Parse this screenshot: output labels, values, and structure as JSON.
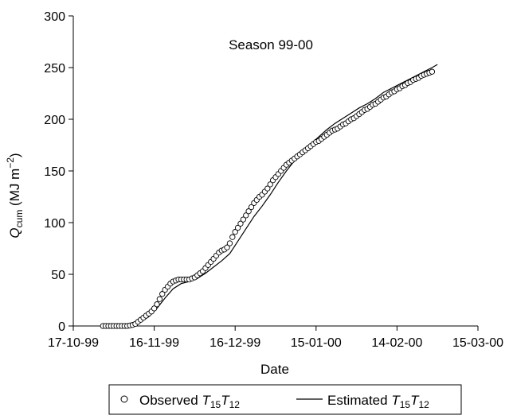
{
  "chart_data": {
    "type": "scatter",
    "title": "",
    "annotation": "Season 99-00",
    "xlabel": "Date",
    "ylabel": {
      "main": "Q",
      "sub": "cum",
      "unit_open": " (MJ m",
      "unit_sup": "−2",
      "unit_close": ")"
    },
    "x_ticks": [
      "17-10-99",
      "16-11-99",
      "16-12-99",
      "15-01-00",
      "14-02-00",
      "15-03-00"
    ],
    "xlim": [
      "1999-10-17",
      "2000-03-15"
    ],
    "y_ticks": [
      "0",
      "50",
      "100",
      "150",
      "200",
      "250",
      "300"
    ],
    "ylim": [
      0,
      300
    ],
    "grid": false,
    "legend_position": "bottom",
    "series": [
      {
        "name": {
          "prefix": "Observed ",
          "a": "T",
          "a_sub": "15",
          "b": "T",
          "b_sub": "12"
        },
        "marker": "open-circle",
        "points": [
          [
            "1999-10-28",
            0
          ],
          [
            "1999-10-29",
            0
          ],
          [
            "1999-10-30",
            0
          ],
          [
            "1999-10-31",
            0
          ],
          [
            "1999-11-01",
            0
          ],
          [
            "1999-11-02",
            0
          ],
          [
            "1999-11-03",
            0
          ],
          [
            "1999-11-04",
            0
          ],
          [
            "1999-11-05",
            0
          ],
          [
            "1999-11-06",
            0
          ],
          [
            "1999-11-07",
            0.5
          ],
          [
            "1999-11-08",
            1
          ],
          [
            "1999-11-09",
            2
          ],
          [
            "1999-11-10",
            4
          ],
          [
            "1999-11-11",
            6
          ],
          [
            "1999-11-12",
            8
          ],
          [
            "1999-11-13",
            10
          ],
          [
            "1999-11-14",
            12
          ],
          [
            "1999-11-15",
            14
          ],
          [
            "1999-11-16",
            17
          ],
          [
            "1999-11-17",
            21
          ],
          [
            "1999-11-18",
            26
          ],
          [
            "1999-11-19",
            31
          ],
          [
            "1999-11-20",
            35
          ],
          [
            "1999-11-21",
            38
          ],
          [
            "1999-11-22",
            41
          ],
          [
            "1999-11-23",
            43
          ],
          [
            "1999-11-24",
            44
          ],
          [
            "1999-11-25",
            45
          ],
          [
            "1999-11-26",
            45
          ],
          [
            "1999-11-27",
            45
          ],
          [
            "1999-11-28",
            45
          ],
          [
            "1999-11-29",
            45
          ],
          [
            "1999-11-30",
            46
          ],
          [
            "1999-12-01",
            47
          ],
          [
            "1999-12-02",
            49
          ],
          [
            "1999-12-03",
            51
          ],
          [
            "1999-12-04",
            53
          ],
          [
            "1999-12-05",
            56
          ],
          [
            "1999-12-06",
            59
          ],
          [
            "1999-12-07",
            62
          ],
          [
            "1999-12-08",
            65
          ],
          [
            "1999-12-09",
            68
          ],
          [
            "1999-12-10",
            71
          ],
          [
            "1999-12-11",
            73
          ],
          [
            "1999-12-12",
            74
          ],
          [
            "1999-12-13",
            76
          ],
          [
            "1999-12-14",
            80
          ],
          [
            "1999-12-15",
            86
          ],
          [
            "1999-12-16",
            91
          ],
          [
            "1999-12-17",
            95
          ],
          [
            "1999-12-18",
            99
          ],
          [
            "1999-12-19",
            103
          ],
          [
            "1999-12-20",
            107
          ],
          [
            "1999-12-21",
            111
          ],
          [
            "1999-12-22",
            115
          ],
          [
            "1999-12-23",
            119
          ],
          [
            "1999-12-24",
            122
          ],
          [
            "1999-12-25",
            125
          ],
          [
            "1999-12-26",
            127
          ],
          [
            "1999-12-27",
            130
          ],
          [
            "1999-12-28",
            133
          ],
          [
            "1999-12-29",
            137
          ],
          [
            "1999-12-30",
            141
          ],
          [
            "1999-12-31",
            144
          ],
          [
            "2000-01-01",
            147
          ],
          [
            "2000-01-02",
            150
          ],
          [
            "2000-01-03",
            153
          ],
          [
            "2000-01-04",
            156
          ],
          [
            "2000-01-05",
            158
          ],
          [
            "2000-01-06",
            160
          ],
          [
            "2000-01-07",
            162
          ],
          [
            "2000-01-08",
            164
          ],
          [
            "2000-01-09",
            166
          ],
          [
            "2000-01-10",
            168
          ],
          [
            "2000-01-11",
            170
          ],
          [
            "2000-01-12",
            172
          ],
          [
            "2000-01-13",
            174
          ],
          [
            "2000-01-14",
            176
          ],
          [
            "2000-01-15",
            178
          ],
          [
            "2000-01-16",
            179
          ],
          [
            "2000-01-17",
            181
          ],
          [
            "2000-01-18",
            183
          ],
          [
            "2000-01-19",
            185
          ],
          [
            "2000-01-20",
            187
          ],
          [
            "2000-01-21",
            189
          ],
          [
            "2000-01-22",
            190
          ],
          [
            "2000-01-23",
            191
          ],
          [
            "2000-01-24",
            193
          ],
          [
            "2000-01-25",
            195
          ],
          [
            "2000-01-26",
            196
          ],
          [
            "2000-01-27",
            198
          ],
          [
            "2000-01-28",
            200
          ],
          [
            "2000-01-29",
            201
          ],
          [
            "2000-01-30",
            203
          ],
          [
            "2000-01-31",
            205
          ],
          [
            "2000-02-01",
            207
          ],
          [
            "2000-02-02",
            209
          ],
          [
            "2000-02-03",
            210
          ],
          [
            "2000-02-04",
            212
          ],
          [
            "2000-02-05",
            214
          ],
          [
            "2000-02-06",
            215
          ],
          [
            "2000-02-07",
            217
          ],
          [
            "2000-02-08",
            219
          ],
          [
            "2000-02-09",
            221
          ],
          [
            "2000-02-10",
            222
          ],
          [
            "2000-02-11",
            224
          ],
          [
            "2000-02-12",
            226
          ],
          [
            "2000-02-13",
            227
          ],
          [
            "2000-02-14",
            229
          ],
          [
            "2000-02-15",
            230
          ],
          [
            "2000-02-16",
            232
          ],
          [
            "2000-02-17",
            233
          ],
          [
            "2000-02-18",
            235
          ],
          [
            "2000-02-19",
            236
          ],
          [
            "2000-02-20",
            238
          ],
          [
            "2000-02-21",
            239
          ],
          [
            "2000-02-22",
            240
          ],
          [
            "2000-02-23",
            242
          ],
          [
            "2000-02-24",
            243
          ],
          [
            "2000-02-25",
            244
          ],
          [
            "2000-02-26",
            245
          ],
          [
            "2000-02-27",
            246
          ]
        ]
      },
      {
        "name": {
          "prefix": "Estimated ",
          "a": "T",
          "a_sub": "15",
          "b": "T",
          "b_sub": "12"
        },
        "marker": "line",
        "points": [
          [
            "1999-10-28",
            0
          ],
          [
            "1999-11-05",
            0
          ],
          [
            "1999-11-08",
            1
          ],
          [
            "1999-11-11",
            4
          ],
          [
            "1999-11-14",
            9
          ],
          [
            "1999-11-17",
            17
          ],
          [
            "1999-11-20",
            27
          ],
          [
            "1999-11-23",
            36
          ],
          [
            "1999-11-26",
            41
          ],
          [
            "1999-11-29",
            43
          ],
          [
            "1999-12-02",
            46
          ],
          [
            "1999-12-05",
            51
          ],
          [
            "1999-12-08",
            57
          ],
          [
            "1999-12-11",
            63
          ],
          [
            "1999-12-14",
            70
          ],
          [
            "1999-12-17",
            82
          ],
          [
            "1999-12-20",
            94
          ],
          [
            "1999-12-23",
            106
          ],
          [
            "1999-12-26",
            116
          ],
          [
            "1999-12-29",
            127
          ],
          [
            "2000-01-01",
            139
          ],
          [
            "2000-01-04",
            150
          ],
          [
            "2000-01-07",
            160
          ],
          [
            "2000-01-10",
            168
          ],
          [
            "2000-01-13",
            176
          ],
          [
            "2000-01-16",
            183
          ],
          [
            "2000-01-19",
            190
          ],
          [
            "2000-01-22",
            196
          ],
          [
            "2000-01-25",
            201
          ],
          [
            "2000-01-28",
            206
          ],
          [
            "2000-01-31",
            211
          ],
          [
            "2000-02-03",
            215
          ],
          [
            "2000-02-06",
            220
          ],
          [
            "2000-02-09",
            226
          ],
          [
            "2000-02-12",
            230
          ],
          [
            "2000-02-15",
            234
          ],
          [
            "2000-02-18",
            238
          ],
          [
            "2000-02-21",
            242
          ],
          [
            "2000-02-24",
            246
          ],
          [
            "2000-02-27",
            250
          ],
          [
            "2000-02-29",
            253
          ]
        ]
      }
    ]
  }
}
